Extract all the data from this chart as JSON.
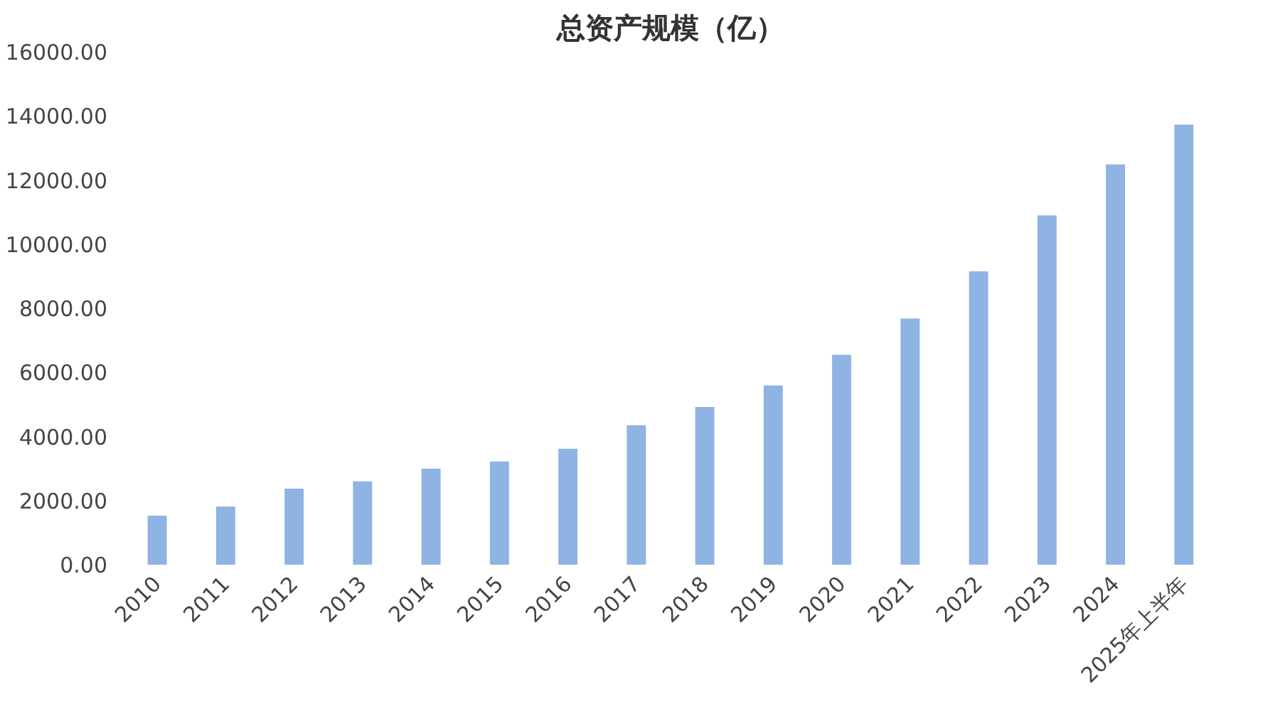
{
  "chart_data": {
    "type": "bar",
    "title": "总资产规模（亿）",
    "categories": [
      "2010",
      "2011",
      "2012",
      "2013",
      "2014",
      "2015",
      "2016",
      "2017",
      "2018",
      "2019",
      "2020",
      "2021",
      "2022",
      "2023",
      "2024",
      "2025年上半年"
    ],
    "values": [
      1530,
      1810,
      2370,
      2600,
      3000,
      3220,
      3620,
      4350,
      4920,
      5590,
      6550,
      7680,
      9150,
      10900,
      12490,
      13730
    ],
    "color": "#8fb4e3",
    "ylim": [
      0,
      16000
    ],
    "yticks": [
      {
        "value": 0,
        "label": "0.00"
      },
      {
        "value": 2000,
        "label": "2000.00"
      },
      {
        "value": 4000,
        "label": "4000.00"
      },
      {
        "value": 6000,
        "label": "6000.00"
      },
      {
        "value": 8000,
        "label": "8000.00"
      },
      {
        "value": 10000,
        "label": "10000.00"
      },
      {
        "value": 12000,
        "label": "12000.00"
      },
      {
        "value": 14000,
        "label": "14000.00"
      },
      {
        "value": 16000,
        "label": "16000.00"
      }
    ],
    "grid": false
  }
}
